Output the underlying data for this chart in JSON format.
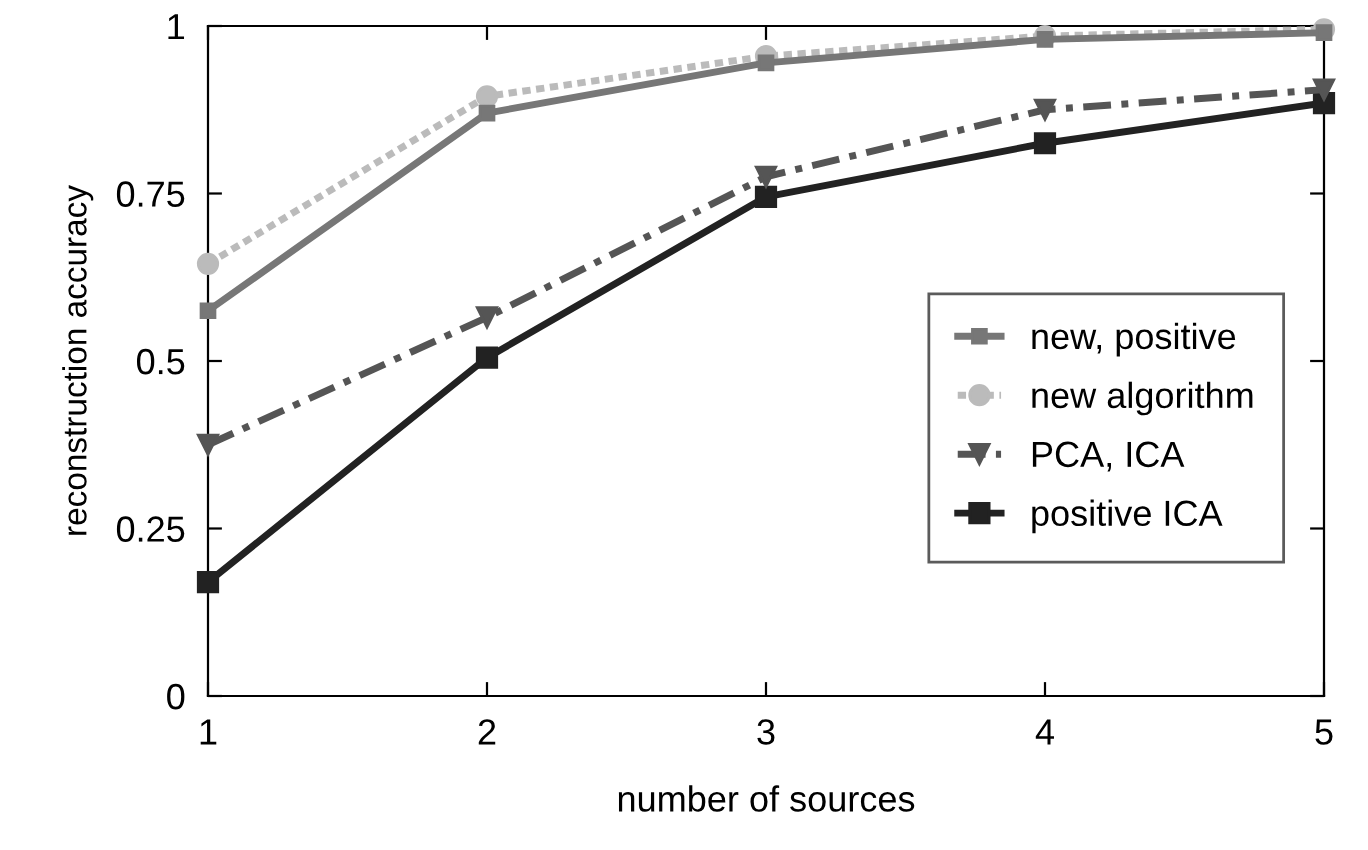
{
  "chart_data": {
    "type": "line",
    "xlabel": "number of sources",
    "ylabel": "reconstruction accuracy",
    "x": [
      1,
      2,
      3,
      4,
      5
    ],
    "xlim": [
      1,
      5
    ],
    "xticks": [
      1,
      2,
      3,
      4,
      5
    ],
    "ylim": [
      0,
      1
    ],
    "yticks": [
      0,
      0.25,
      0.5,
      0.75,
      1
    ],
    "grid": false,
    "legend": "right",
    "series": [
      {
        "name": "new, positive",
        "color": "#777777",
        "marker": "square",
        "line_style": "solid",
        "values": [
          0.575,
          0.87,
          0.945,
          0.98,
          0.99
        ]
      },
      {
        "name": "new algorithm",
        "color": "#bbbbbb",
        "marker": "circle",
        "line_style": "dotted",
        "values": [
          0.645,
          0.895,
          0.955,
          0.985,
          0.995
        ]
      },
      {
        "name": "PCA, ICA",
        "color": "#555555",
        "marker": "triangle",
        "line_style": "dashed",
        "values": [
          0.375,
          0.565,
          0.775,
          0.875,
          0.905
        ]
      },
      {
        "name": "positive ICA",
        "color": "#222222",
        "marker": "square",
        "line_style": "solid",
        "values": [
          0.17,
          0.505,
          0.745,
          0.825,
          0.885
        ]
      }
    ]
  }
}
